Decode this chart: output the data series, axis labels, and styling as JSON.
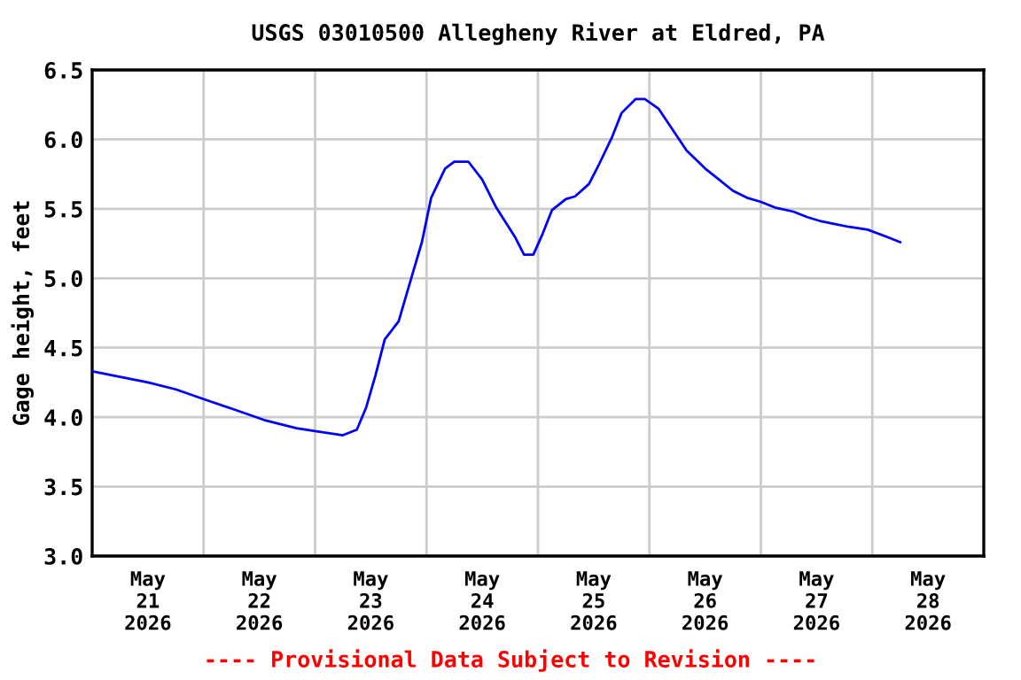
{
  "chart_data": {
    "type": "line",
    "title": "USGS 03010500 Allegheny River at Eldred, PA",
    "ylabel": "Gage height, feet",
    "annotations": [
      "---- Provisional Data Subject to Revision ----"
    ],
    "x": [
      "2026-05-21T00:00",
      "2026-05-21T06:00",
      "2026-05-21T12:00",
      "2026-05-21T18:00",
      "2026-05-22T00:00",
      "2026-05-22T07:00",
      "2026-05-22T13:00",
      "2026-05-22T20:00",
      "2026-05-23T00:00",
      "2026-05-23T06:00",
      "2026-05-23T09:00",
      "2026-05-23T11:00",
      "2026-05-23T13:00",
      "2026-05-23T15:00",
      "2026-05-23T18:00",
      "2026-05-23T20:00",
      "2026-05-23T23:00",
      "2026-05-24T01:00",
      "2026-05-24T04:00",
      "2026-05-24T06:00",
      "2026-05-24T09:00",
      "2026-05-24T12:00",
      "2026-05-24T15:00",
      "2026-05-24T19:00",
      "2026-05-24T21:00",
      "2026-05-24T23:00",
      "2026-05-25T01:00",
      "2026-05-25T03:00",
      "2026-05-25T06:00",
      "2026-05-25T08:00",
      "2026-05-25T11:00",
      "2026-05-25T13:00",
      "2026-05-25T16:00",
      "2026-05-25T18:00",
      "2026-05-25T21:00",
      "2026-05-25T23:00",
      "2026-05-26T02:00",
      "2026-05-26T05:00",
      "2026-05-26T08:00",
      "2026-05-26T12:00",
      "2026-05-26T15:00",
      "2026-05-26T18:00",
      "2026-05-26T21:00",
      "2026-05-27T00:00",
      "2026-05-27T03:00",
      "2026-05-27T07:00",
      "2026-05-27T10:00",
      "2026-05-27T13:00",
      "2026-05-27T16:00",
      "2026-05-27T19:00",
      "2026-05-27T23:00",
      "2026-05-28T03:00",
      "2026-05-28T06:00"
    ],
    "series": [
      {
        "color": "#0000ff",
        "values": [
          4.33,
          4.29,
          4.25,
          4.2,
          4.13,
          4.05,
          3.98,
          3.92,
          3.9,
          3.87,
          3.91,
          4.07,
          4.3,
          4.56,
          4.69,
          4.92,
          5.26,
          5.58,
          5.79,
          5.84,
          5.84,
          5.71,
          5.51,
          5.3,
          5.17,
          5.17,
          5.32,
          5.49,
          5.57,
          5.59,
          5.68,
          5.81,
          6.02,
          6.19,
          6.29,
          6.29,
          6.22,
          6.07,
          5.92,
          5.79,
          5.71,
          5.63,
          5.58,
          5.55,
          5.51,
          5.48,
          5.44,
          5.41,
          5.39,
          5.37,
          5.35,
          5.3,
          5.26
        ]
      }
    ],
    "xlim": [
      "2026-05-21T00:00",
      "2026-05-29T00:00"
    ],
    "xticks": [
      {
        "value": "2026-05-21T12:00",
        "label": "May\n21\n2026"
      },
      {
        "value": "2026-05-22T12:00",
        "label": "May\n22\n2026"
      },
      {
        "value": "2026-05-23T12:00",
        "label": "May\n23\n2026"
      },
      {
        "value": "2026-05-24T12:00",
        "label": "May\n24\n2026"
      },
      {
        "value": "2026-05-25T12:00",
        "label": "May\n25\n2026"
      },
      {
        "value": "2026-05-26T12:00",
        "label": "May\n26\n2026"
      },
      {
        "value": "2026-05-27T12:00",
        "label": "May\n27\n2026"
      },
      {
        "value": "2026-05-28T12:00",
        "label": "May\n28\n2026"
      },
      {
        "value": "2026-05-22T00:00",
        "label": null
      },
      {
        "value": "2026-05-23T00:00",
        "label": null
      },
      {
        "value": "2026-05-24T00:00",
        "label": null
      },
      {
        "value": "2026-05-25T00:00",
        "label": null
      },
      {
        "value": "2026-05-26T00:00",
        "label": null
      },
      {
        "value": "2026-05-27T00:00",
        "label": null
      },
      {
        "value": "2026-05-28T00:00",
        "label": null
      }
    ],
    "ylim": [
      3.0,
      6.5
    ],
    "yticks": [
      {
        "value": 3,
        "label": "3.0"
      },
      3.5,
      {
        "value": 4,
        "label": "4.0"
      },
      4.5,
      {
        "value": 5,
        "label": "5.0"
      },
      5.5,
      {
        "value": 6,
        "label": "6.0"
      },
      6.5
    ],
    "grid": true,
    "marker": "none",
    "line_style": "solid"
  }
}
